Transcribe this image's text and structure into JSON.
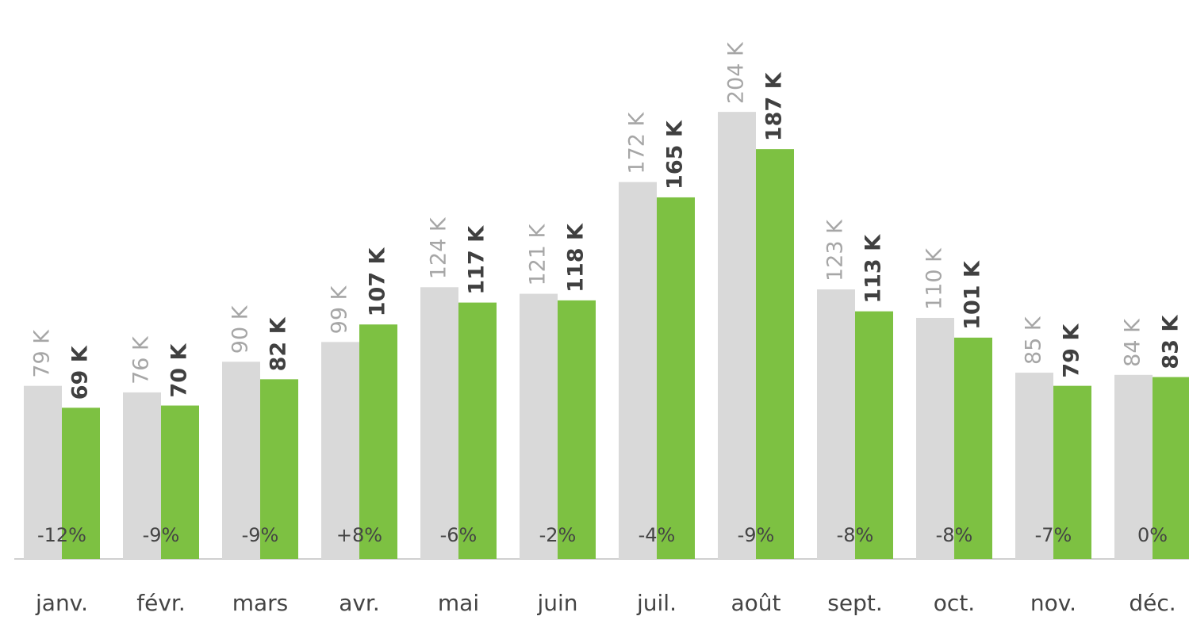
{
  "chart_data": {
    "type": "bar",
    "categories": [
      "janv.",
      "févr.",
      "mars",
      "avr.",
      "mai",
      "juin",
      "juil.",
      "août",
      "sept.",
      "oct.",
      "nov.",
      "déc."
    ],
    "series": [
      {
        "color": "#d9d9d9",
        "values": [
          79,
          76,
          90,
          99,
          124,
          121,
          172,
          204,
          123,
          110,
          85,
          84
        ],
        "value_labels": [
          "79 K",
          "76 K",
          "90 K",
          "99 K",
          "124 K",
          "121 K",
          "172 K",
          "204 K",
          "123 K",
          "110 K",
          "85 K",
          "84 K"
        ]
      },
      {
        "color": "#7dc142",
        "values": [
          69,
          70,
          82,
          107,
          117,
          118,
          165,
          187,
          113,
          101,
          79,
          83
        ],
        "value_labels": [
          "69 K",
          "70 K",
          "82 K",
          "107 K",
          "117 K",
          "118 K",
          "165 K",
          "187 K",
          "113 K",
          "101 K",
          "79 K",
          "83 K"
        ]
      }
    ],
    "change_labels": [
      "-12%",
      "-9%",
      "-9%",
      "+8%",
      "-6%",
      "-2%",
      "-4%",
      "-9%",
      "-8%",
      "-8%",
      "-7%",
      "0%"
    ],
    "ylim": [
      0,
      250
    ]
  }
}
